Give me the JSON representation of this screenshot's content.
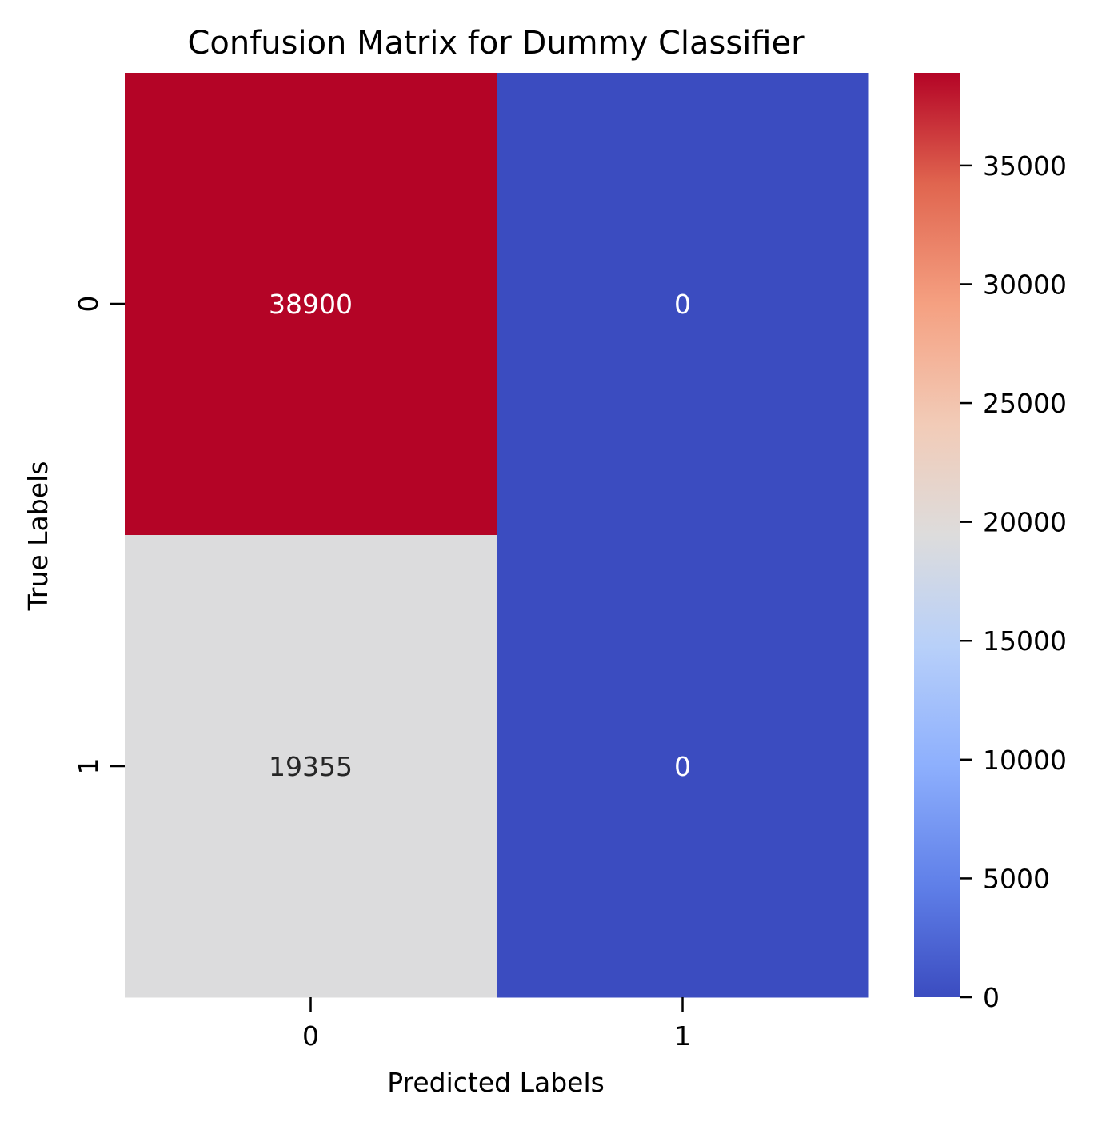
{
  "chart_data": {
    "type": "heatmap",
    "title": "Confusion Matrix for Dummy Classifier",
    "xlabel": "Predicted Labels",
    "ylabel": "True Labels",
    "x_categories": [
      "0",
      "1"
    ],
    "y_categories": [
      "0",
      "1"
    ],
    "values": [
      [
        38900,
        0
      ],
      [
        19355,
        0
      ]
    ],
    "annotations": [
      [
        "38900",
        "0"
      ],
      [
        "19355",
        "0"
      ]
    ],
    "colormap": "coolwarm",
    "colorbar": {
      "range": [
        0,
        38900
      ],
      "ticks": [
        0,
        5000,
        10000,
        15000,
        20000,
        25000,
        30000,
        35000
      ],
      "tick_labels": [
        "0",
        "5000",
        "10000",
        "15000",
        "20000",
        "25000",
        "30000",
        "35000"
      ]
    },
    "grid": false
  }
}
